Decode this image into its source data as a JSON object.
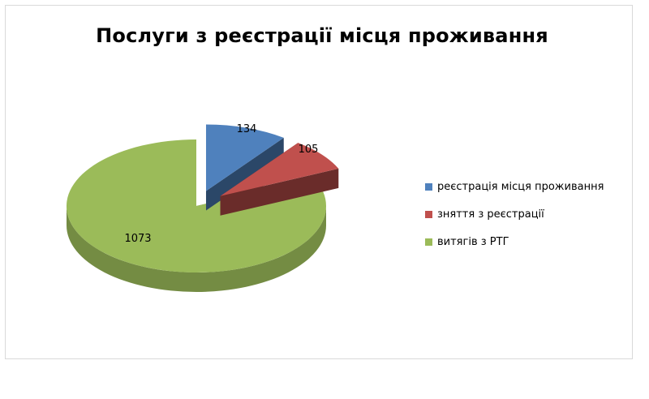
{
  "chart_data": {
    "type": "pie",
    "title": "Послуги з реєстрації місця проживання",
    "categories": [
      "реєстрація місця проживання",
      "зняття з реєстрації",
      "витягів з РТГ"
    ],
    "values": [
      134,
      105,
      1073
    ],
    "colors": [
      "#4f81bd",
      "#c0504d",
      "#9bbb59"
    ],
    "exploded": [
      true,
      true,
      false
    ],
    "three_d": true,
    "legend_position": "right",
    "data_labels": [
      "134",
      "105",
      "1073"
    ]
  }
}
